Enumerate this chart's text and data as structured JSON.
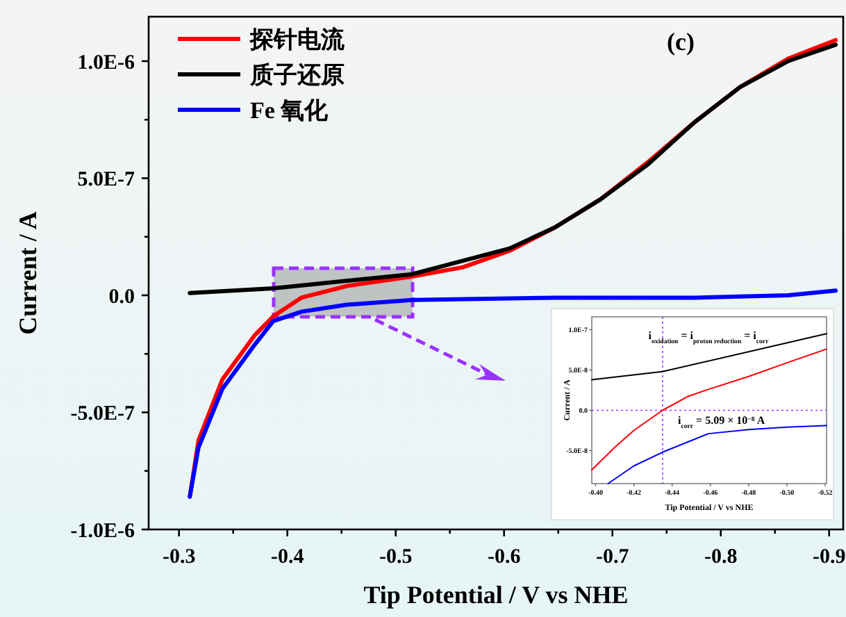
{
  "chart_data": [
    {
      "type": "line",
      "xlabel": "Tip Potential / V vs NHE",
      "ylabel": "Current / A",
      "legend": "top left",
      "annotations": [
        "(c)"
      ],
      "xlim": [
        -0.272,
        -0.913
      ],
      "ylim": [
        -1e-06,
        1.19e-06
      ],
      "xticks": [
        {
          "value": -0.3,
          "label": "-0.3"
        },
        {
          "value": -0.35,
          "label": null
        },
        {
          "value": -0.4,
          "label": "-0.4"
        },
        {
          "value": -0.45,
          "label": null
        },
        {
          "value": -0.5,
          "label": "-0.5"
        },
        {
          "value": -0.55,
          "label": null
        },
        {
          "value": -0.6,
          "label": "-0.6"
        },
        {
          "value": -0.65,
          "label": null
        },
        {
          "value": -0.7,
          "label": "-0.7"
        },
        {
          "value": -0.75,
          "label": null
        },
        {
          "value": -0.8,
          "label": "-0.8"
        },
        {
          "value": -0.85,
          "label": null
        },
        {
          "value": -0.9,
          "label": "-0.9"
        }
      ],
      "yticks": [
        {
          "value": -1e-06,
          "label": "-1.0E-6"
        },
        {
          "value": -7.5e-07,
          "label": null
        },
        {
          "value": -5e-07,
          "label": "-5.0E-7"
        },
        {
          "value": -2.5e-07,
          "label": null
        },
        {
          "value": 0,
          "label": "0.0"
        },
        {
          "value": 2.5e-07,
          "label": null
        },
        {
          "value": 5e-07,
          "label": "5.0E-7"
        },
        {
          "value": 7.5e-07,
          "label": null
        },
        {
          "value": 1e-06,
          "label": "1.0E-6"
        }
      ],
      "series": [
        {
          "name": "探针电流",
          "color": "#ff0000",
          "x": [
            -0.31,
            -0.318,
            -0.34,
            -0.37,
            -0.387,
            -0.413,
            -0.455,
            -0.515,
            -0.562,
            -0.605,
            -0.647,
            -0.689,
            -0.733,
            -0.776,
            -0.818,
            -0.862,
            -0.906
          ],
          "values": [
            -8.6e-07,
            -6.2e-07,
            -3.6e-07,
            -1.7e-07,
            -9e-08,
            -1e-08,
            4e-08,
            8e-08,
            1.2e-07,
            1.9e-07,
            2.9e-07,
            4.1e-07,
            5.7e-07,
            7.4e-07,
            8.9e-07,
            1.01e-06,
            1.09e-06
          ]
        },
        {
          "name": "质子还原",
          "color": "#000000",
          "x": [
            -0.31,
            -0.387,
            -0.515,
            -0.605,
            -0.647,
            -0.689,
            -0.733,
            -0.776,
            -0.818,
            -0.862,
            -0.906
          ],
          "values": [
            1e-08,
            3e-08,
            9e-08,
            2e-07,
            2.9e-07,
            4.1e-07,
            5.6e-07,
            7.4e-07,
            8.9e-07,
            1e-06,
            1.07e-06
          ]
        },
        {
          "name": "Fe 氧化",
          "color": "#0000ff",
          "x": [
            -0.31,
            -0.318,
            -0.34,
            -0.37,
            -0.387,
            -0.413,
            -0.455,
            -0.515,
            -0.647,
            -0.776,
            -0.862,
            -0.906
          ],
          "values": [
            -8.6e-07,
            -6.5e-07,
            -4e-07,
            -2.1e-07,
            -1.1e-07,
            -7e-08,
            -4e-08,
            -2e-08,
            -1e-08,
            -1e-08,
            0,
            2e-08
          ]
        }
      ]
    },
    {
      "type": "line",
      "xlabel": "Tip Potential / V vs NHE",
      "ylabel": "Current / A",
      "annotations": [
        "i$_{oxidation}$ = i$_{proton reduction}$ = i$_{corr}$",
        "i$_{corr}$ = 5.09 × 10$^{−8}$ A"
      ],
      "xlim": [
        -0.398,
        -0.5207
      ],
      "ylim": [
        -9.1e-08,
        1.16e-07
      ],
      "xticks": [
        {
          "value": -0.4,
          "label": "-0.40"
        },
        {
          "value": -0.42,
          "label": "-0.42"
        },
        {
          "value": -0.44,
          "label": "-0.44"
        },
        {
          "value": -0.46,
          "label": "-0.46"
        },
        {
          "value": -0.48,
          "label": "-0.48"
        },
        {
          "value": -0.5,
          "label": "-0.50"
        },
        {
          "value": -0.52,
          "label": "-0.52"
        }
      ],
      "yticks": [
        {
          "value": -5e-08,
          "label": "-5.0E-8"
        },
        {
          "value": 0,
          "label": "0.0"
        },
        {
          "value": 5e-08,
          "label": "5.0E-8"
        },
        {
          "value": 1e-07,
          "label": "1.0E-7"
        }
      ],
      "ref_lines": [
        {
          "axis": "x",
          "value": -0.435,
          "color": "#9933ff",
          "line_style": "dotted"
        },
        {
          "axis": "y",
          "value": 0,
          "color": "#9933ff",
          "line_style": "dotted"
        }
      ],
      "series": [
        {
          "color": "#000000",
          "x": [
            -0.398,
            -0.435,
            -0.5207
          ],
          "values": [
            3.8e-08,
            4.8e-08,
            9.5e-08
          ]
        },
        {
          "color": "#ff0000",
          "x": [
            -0.398,
            -0.41,
            -0.42,
            -0.435,
            -0.448,
            -0.459,
            -0.48,
            -0.5,
            -0.5207
          ],
          "values": [
            -7.4e-08,
            -4.6e-08,
            -2.5e-08,
            0,
            1.7e-08,
            2.6e-08,
            4.2e-08,
            5.9e-08,
            7.6e-08
          ]
        },
        {
          "color": "#0000ff",
          "x": [
            -0.4065,
            -0.42,
            -0.435,
            -0.459,
            -0.48,
            -0.5,
            -0.5207
          ],
          "values": [
            -9.1e-08,
            -6.9e-08,
            -5.2e-08,
            -2.9e-08,
            -2.4e-08,
            -2.1e-08,
            -1.9e-08
          ]
        }
      ]
    }
  ]
}
